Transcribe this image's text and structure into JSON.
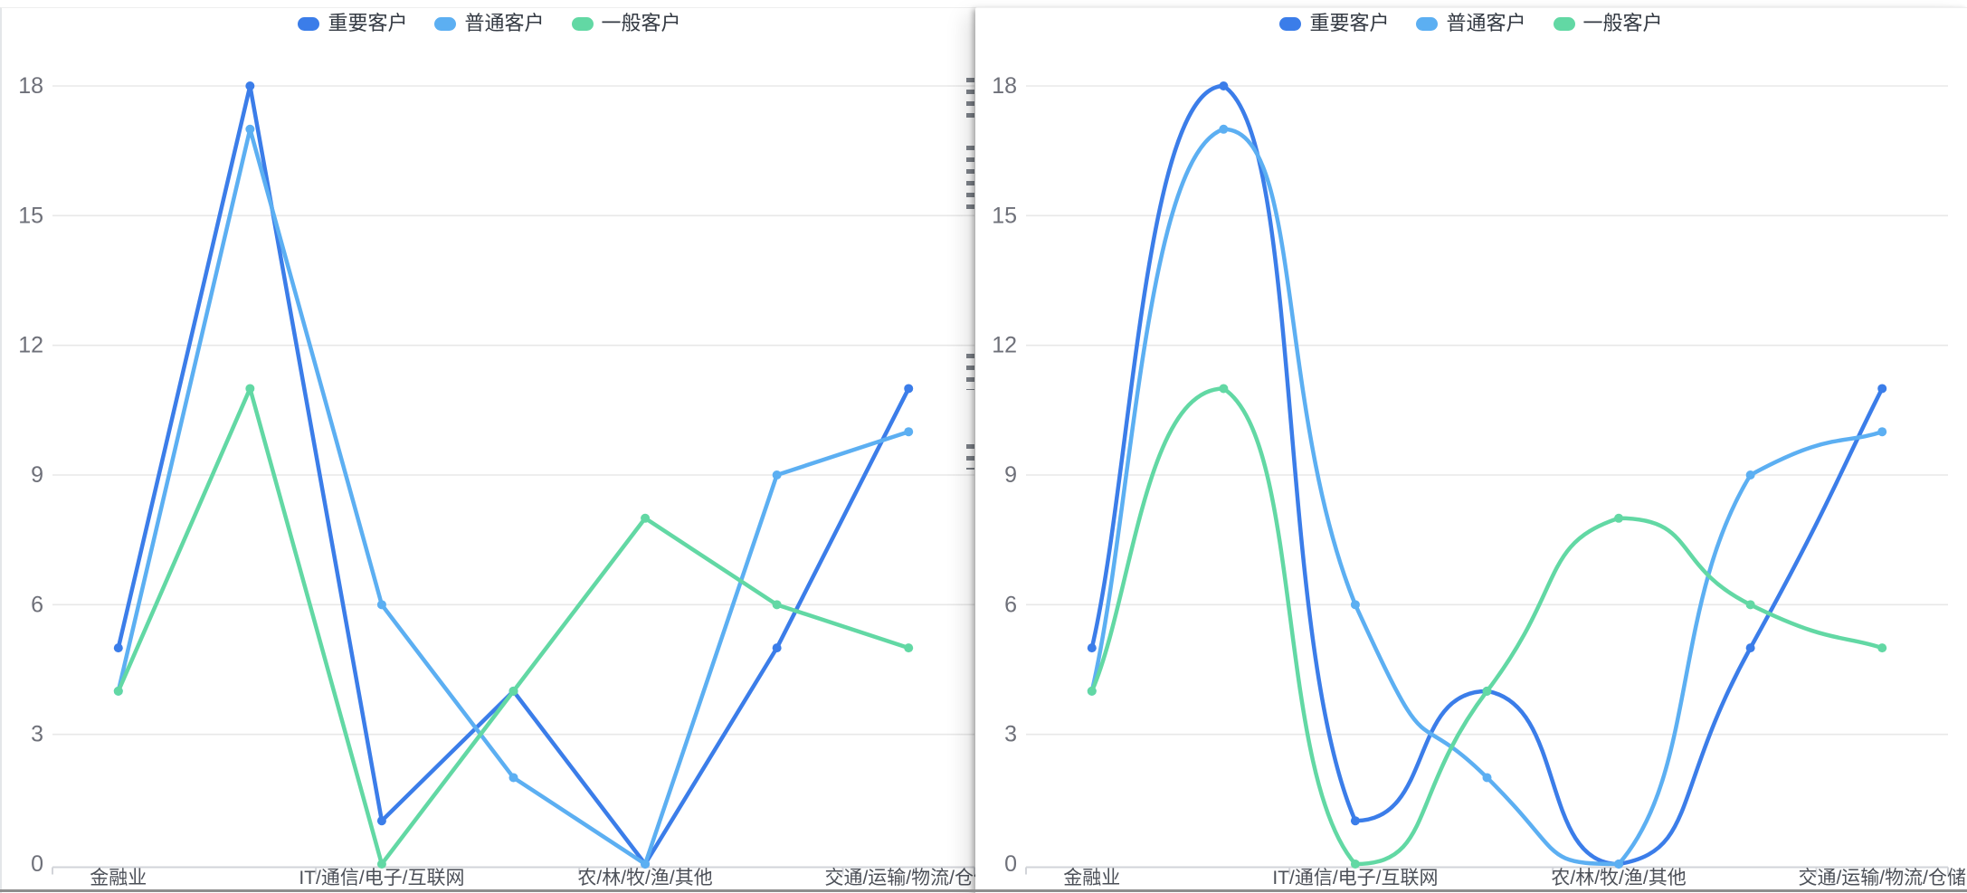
{
  "page": {
    "background": "#ffffff",
    "bottom_bar_color": "#8d8d8d",
    "card_shadow": "left edge of right card"
  },
  "colors": {
    "series_important": "#3B7DE9",
    "series_normal": "#5CAFF2",
    "series_general": "#62D8A4",
    "gridline": "#E8E8E8",
    "axis_line": "#D2D4D9",
    "y_tick_label": "#6E7079",
    "x_category_label": "#4C5058",
    "legend_text": "#333942"
  },
  "chart_data": [
    {
      "type": "line",
      "smooth": false,
      "position": "left-panel",
      "title": "",
      "legend_position": "top-center",
      "grid": true,
      "ylim": [
        0,
        18
      ],
      "y_ticks": [
        0,
        3,
        6,
        9,
        12,
        15,
        18
      ],
      "point_count": 7,
      "visible_category_indices": [
        0,
        2,
        4,
        6
      ],
      "categories_visible": [
        "金融业",
        "IT/通信/电子/互联网",
        "农/林/牧/渔/其他",
        "交通/运输/物流/仓储"
      ],
      "series": [
        {
          "name": "重要客户",
          "color": "#3B7DE9",
          "values": [
            5,
            18,
            1,
            4,
            0,
            5,
            11
          ]
        },
        {
          "name": "普通客户",
          "color": "#5CAFF2",
          "values": [
            4,
            17,
            6,
            2,
            0,
            9,
            10
          ]
        },
        {
          "name": "一般客户",
          "color": "#62D8A4",
          "values": [
            4,
            11,
            0,
            4,
            8,
            6,
            5
          ]
        }
      ]
    },
    {
      "type": "line",
      "smooth": true,
      "position": "right-panel",
      "title": "",
      "legend_position": "top-center",
      "grid": true,
      "ylim": [
        0,
        18
      ],
      "y_ticks": [
        0,
        3,
        6,
        9,
        12,
        15,
        18
      ],
      "point_count": 7,
      "visible_category_indices": [
        0,
        2,
        4,
        6
      ],
      "categories_visible": [
        "金融业",
        "IT/通信/电子/互联网",
        "农/林/牧/渔/其他",
        "交通/运输/物流/仓储"
      ],
      "series": [
        {
          "name": "重要客户",
          "color": "#3B7DE9",
          "values": [
            5,
            18,
            1,
            4,
            0,
            5,
            11
          ]
        },
        {
          "name": "普通客户",
          "color": "#5CAFF2",
          "values": [
            4,
            17,
            6,
            2,
            0,
            9,
            10
          ]
        },
        {
          "name": "一般客户",
          "color": "#62D8A4",
          "values": [
            4,
            11,
            0,
            4,
            8,
            6,
            5
          ]
        }
      ]
    }
  ]
}
